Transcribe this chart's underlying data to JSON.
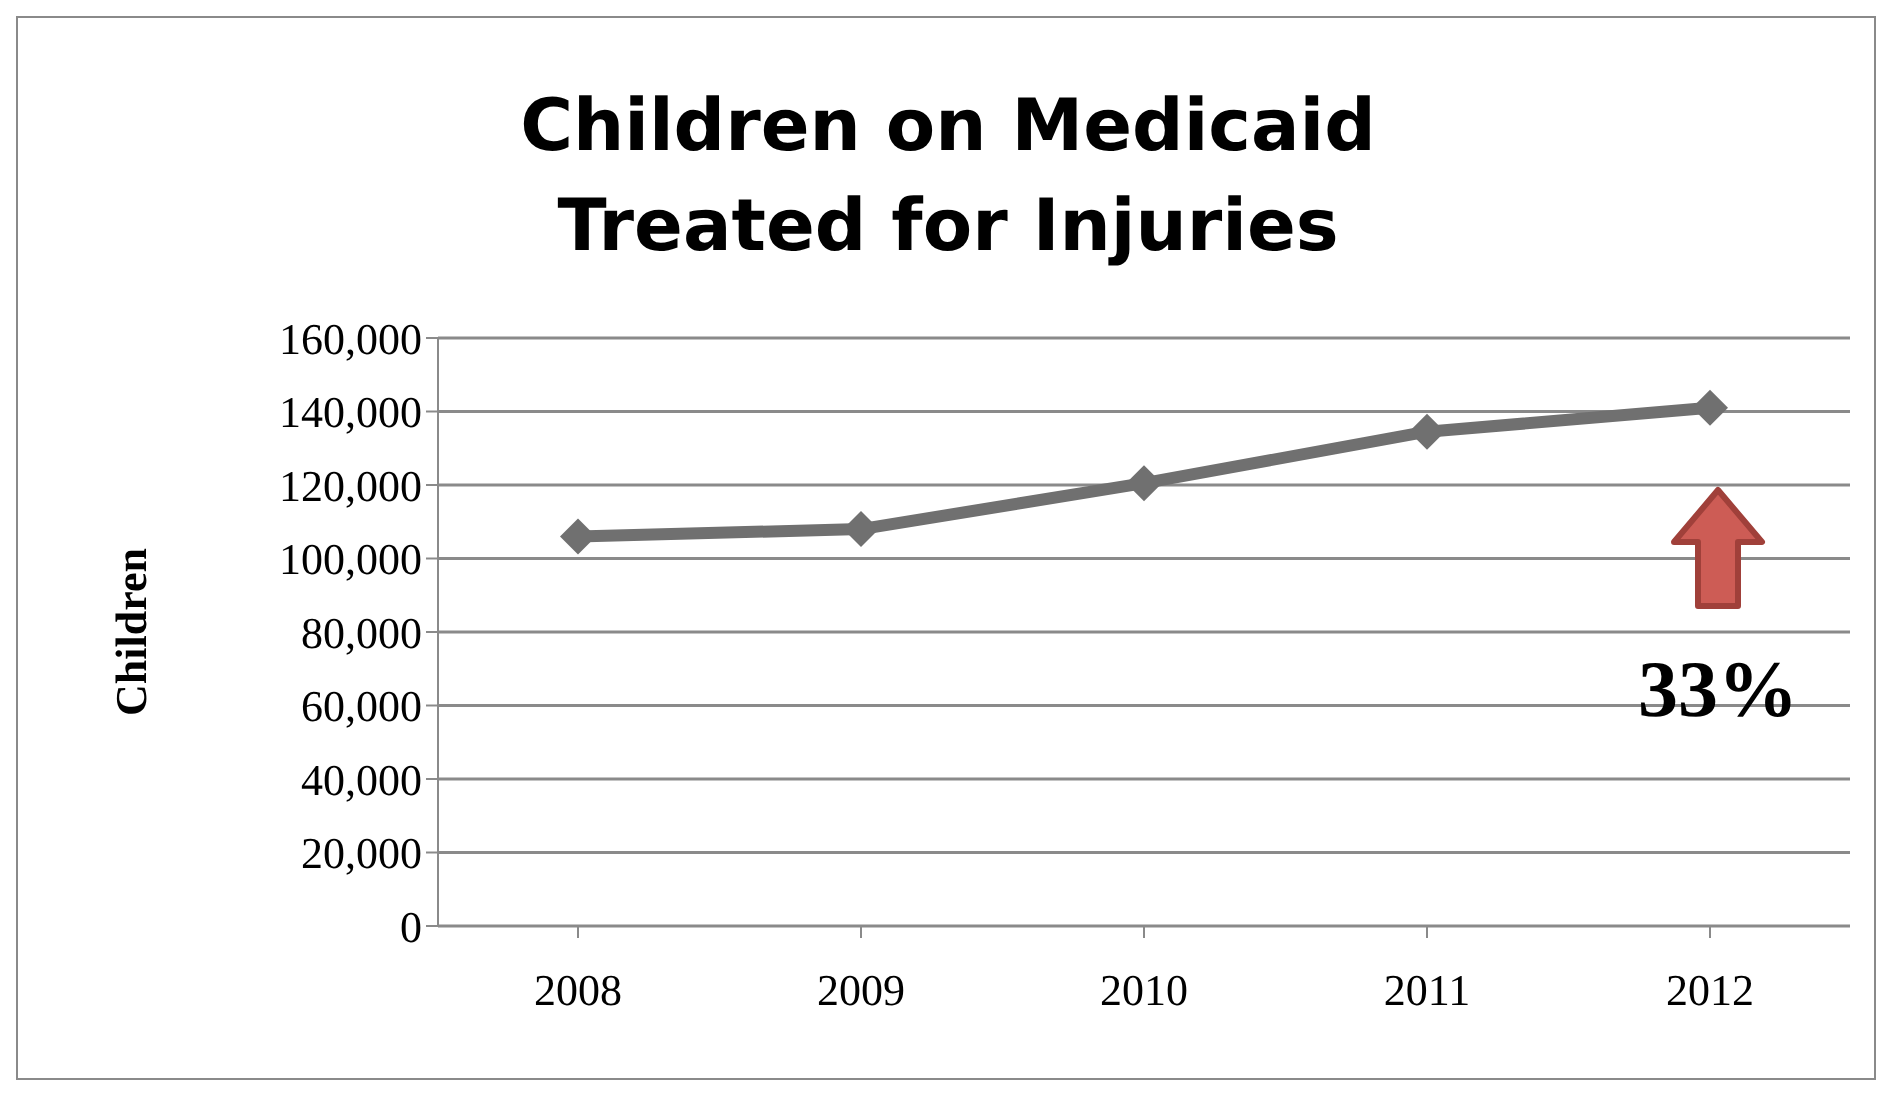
{
  "chart_data": {
    "type": "line",
    "title": "Children on Medicaid\nTreated for Injuries",
    "ylabel": "Children",
    "categories": [
      "2008",
      "2009",
      "2010",
      "2011",
      "2012"
    ],
    "series": [
      {
        "color": "#707070",
        "values": [
          106000,
          108000,
          120500,
          134500,
          141000
        ]
      }
    ],
    "ylim": [
      0,
      160000
    ],
    "yticks": [
      0,
      {
        "value": 20000,
        "label": "20,000"
      },
      {
        "value": 40000,
        "label": "40,000"
      },
      {
        "value": 60000,
        "label": "60,000"
      },
      {
        "value": 80000,
        "label": "80,000"
      },
      {
        "value": 100000,
        "label": "100,000"
      },
      {
        "value": 120000,
        "label": "120,000"
      },
      {
        "value": 140000,
        "label": "140,000"
      },
      {
        "value": 160000,
        "label": "160,000"
      }
    ],
    "grid": "y",
    "marker": "diamond",
    "line_style": "solid",
    "annotations": [
      "33%"
    ]
  }
}
